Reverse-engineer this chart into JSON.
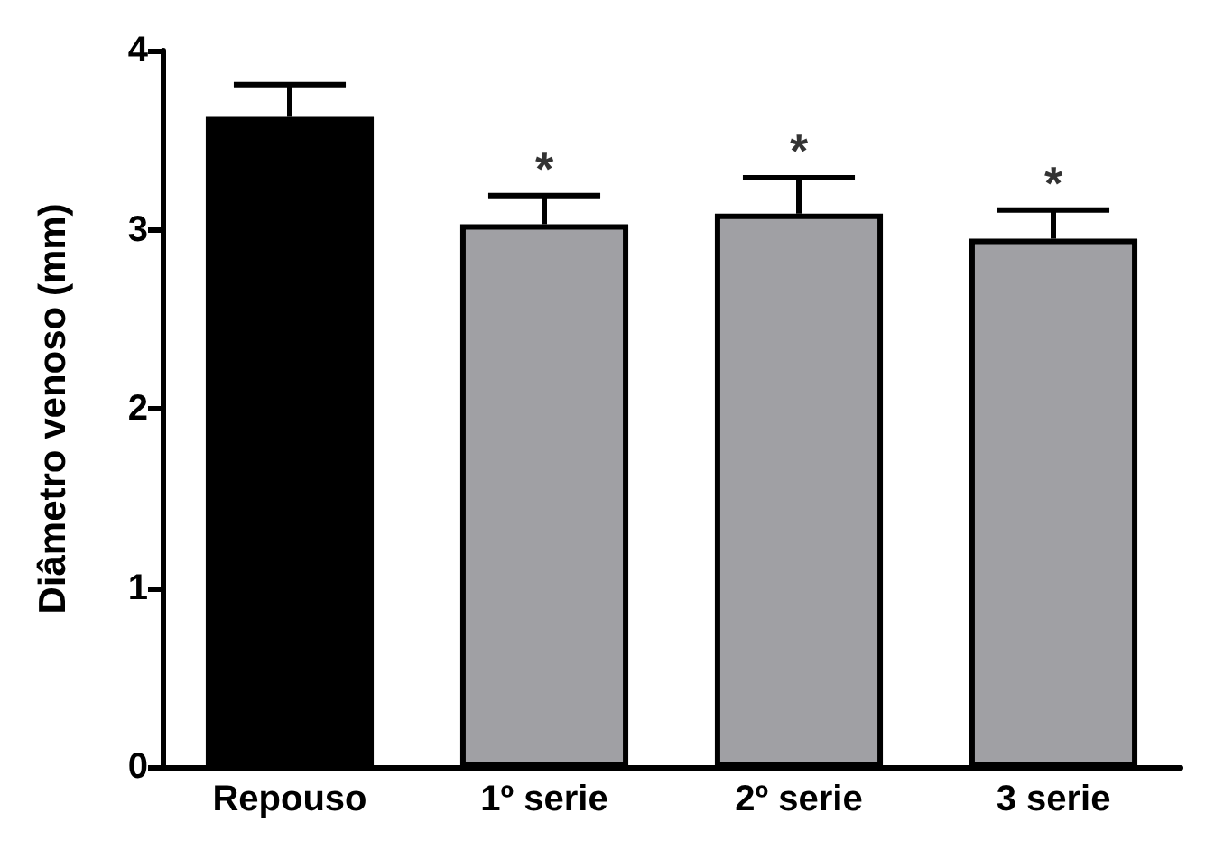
{
  "chart_data": {
    "type": "bar",
    "ylabel": "Diâmetro venoso (mm)",
    "categories": [
      "Repouso",
      "1º serie",
      "2º serie",
      "3 serie"
    ],
    "values": [
      3.63,
      3.03,
      3.09,
      2.95
    ],
    "colors": [
      "#000000",
      "#a0a0a4",
      "#a0a0a4",
      "#a0a0a4"
    ],
    "errors": [
      [
        3.63,
        3.81
      ],
      [
        3.03,
        3.19
      ],
      [
        3.09,
        3.29
      ],
      [
        2.95,
        3.11
      ]
    ],
    "annotations": [
      {
        "text": "*",
        "x": "1º serie",
        "y": 3.19
      },
      {
        "text": "*",
        "x": "2º serie",
        "y": 3.29
      },
      {
        "text": "*",
        "x": "3 serie",
        "y": 3.11
      }
    ],
    "ylim": [
      0,
      4
    ],
    "yticks": [
      0,
      1,
      2,
      3,
      4
    ],
    "grid": false
  }
}
